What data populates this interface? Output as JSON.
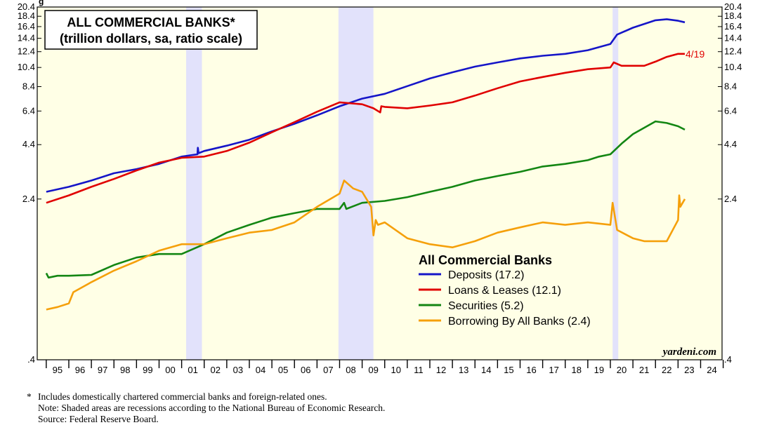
{
  "chart_data": {
    "type": "line",
    "scale": "log",
    "title": "ALL COMMERCIAL BANKS*",
    "subtitle": "(trillion dollars, sa, ratio scale)",
    "ylim": [
      0.4,
      20.4
    ],
    "y_ticks": [
      ".4",
      "2.4",
      "4.4",
      "6.4",
      "8.4",
      "10.4",
      "12.4",
      "14.4",
      "16.4",
      "18.4",
      "20.4"
    ],
    "x_ticks": [
      "95",
      "96",
      "97",
      "98",
      "99",
      "00",
      "01",
      "02",
      "03",
      "04",
      "05",
      "06",
      "07",
      "08",
      "09",
      "10",
      "11",
      "12",
      "13",
      "14",
      "15",
      "16",
      "17",
      "18",
      "19",
      "20",
      "21",
      "22",
      "23",
      "24"
    ],
    "x_range": [
      1995,
      2025
    ],
    "recessions": [
      [
        2001.2,
        2001.9
      ],
      [
        2007.95,
        2009.5
      ],
      [
        2020.1,
        2020.35
      ]
    ],
    "legend_title": "All Commercial Banks",
    "end_label": "4/19",
    "watermark": "yardeni.com",
    "series": [
      {
        "name": "Deposits (17.2)",
        "color": "#1515c8",
        "points": [
          [
            1995,
            2.6
          ],
          [
            1996,
            2.75
          ],
          [
            1997,
            2.95
          ],
          [
            1998,
            3.2
          ],
          [
            1999,
            3.35
          ],
          [
            2000,
            3.55
          ],
          [
            2001,
            3.85
          ],
          [
            2001.7,
            3.95
          ],
          [
            2001.72,
            4.25
          ],
          [
            2001.75,
            4.0
          ],
          [
            2002,
            4.1
          ],
          [
            2003,
            4.35
          ],
          [
            2004,
            4.65
          ],
          [
            2005,
            5.1
          ],
          [
            2006,
            5.55
          ],
          [
            2007,
            6.1
          ],
          [
            2008,
            6.75
          ],
          [
            2009,
            7.35
          ],
          [
            2010,
            7.75
          ],
          [
            2011,
            8.45
          ],
          [
            2012,
            9.2
          ],
          [
            2013,
            9.85
          ],
          [
            2014,
            10.5
          ],
          [
            2015,
            11.0
          ],
          [
            2016,
            11.5
          ],
          [
            2017,
            11.85
          ],
          [
            2018,
            12.1
          ],
          [
            2019,
            12.6
          ],
          [
            2020,
            13.5
          ],
          [
            2020.3,
            15.0
          ],
          [
            2021,
            16.2
          ],
          [
            2022,
            17.6
          ],
          [
            2022.5,
            17.8
          ],
          [
            2023,
            17.5
          ],
          [
            2023.3,
            17.2
          ]
        ]
      },
      {
        "name": "Loans & Leases (12.1)",
        "color": "#e00000",
        "points": [
          [
            1995,
            2.3
          ],
          [
            1996,
            2.5
          ],
          [
            1997,
            2.75
          ],
          [
            1998,
            3.0
          ],
          [
            1999,
            3.3
          ],
          [
            2000,
            3.6
          ],
          [
            2001,
            3.8
          ],
          [
            2002,
            3.85
          ],
          [
            2003,
            4.1
          ],
          [
            2004,
            4.5
          ],
          [
            2005,
            5.05
          ],
          [
            2006,
            5.65
          ],
          [
            2007,
            6.35
          ],
          [
            2008,
            7.05
          ],
          [
            2009,
            6.9
          ],
          [
            2009.5,
            6.6
          ],
          [
            2009.8,
            6.3
          ],
          [
            2009.85,
            6.75
          ],
          [
            2010,
            6.7
          ],
          [
            2011,
            6.6
          ],
          [
            2012,
            6.8
          ],
          [
            2013,
            7.05
          ],
          [
            2014,
            7.6
          ],
          [
            2015,
            8.25
          ],
          [
            2016,
            8.9
          ],
          [
            2017,
            9.35
          ],
          [
            2018,
            9.8
          ],
          [
            2019,
            10.2
          ],
          [
            2020,
            10.4
          ],
          [
            2020.15,
            11.0
          ],
          [
            2020.5,
            10.6
          ],
          [
            2021,
            10.6
          ],
          [
            2021.5,
            10.6
          ],
          [
            2022,
            11.1
          ],
          [
            2022.5,
            11.7
          ],
          [
            2023,
            12.1
          ],
          [
            2023.3,
            12.1
          ]
        ]
      },
      {
        "name": "Securities (5.2)",
        "color": "#138613",
        "points": [
          [
            1995,
            1.05
          ],
          [
            1995.1,
            1.0
          ],
          [
            1995.5,
            1.02
          ],
          [
            1996,
            1.02
          ],
          [
            1997,
            1.03
          ],
          [
            1998,
            1.15
          ],
          [
            1999,
            1.25
          ],
          [
            2000,
            1.3
          ],
          [
            2001,
            1.3
          ],
          [
            2002,
            1.45
          ],
          [
            2003,
            1.65
          ],
          [
            2004,
            1.8
          ],
          [
            2005,
            1.95
          ],
          [
            2006,
            2.05
          ],
          [
            2007,
            2.15
          ],
          [
            2008,
            2.15
          ],
          [
            2008.2,
            2.3
          ],
          [
            2008.3,
            2.15
          ],
          [
            2009,
            2.3
          ],
          [
            2010,
            2.35
          ],
          [
            2011,
            2.45
          ],
          [
            2012,
            2.6
          ],
          [
            2013,
            2.75
          ],
          [
            2014,
            2.95
          ],
          [
            2015,
            3.1
          ],
          [
            2016,
            3.25
          ],
          [
            2017,
            3.45
          ],
          [
            2018,
            3.55
          ],
          [
            2019,
            3.7
          ],
          [
            2019.5,
            3.85
          ],
          [
            2020,
            3.95
          ],
          [
            2020.5,
            4.45
          ],
          [
            2021,
            4.95
          ],
          [
            2022,
            5.7
          ],
          [
            2022.5,
            5.6
          ],
          [
            2023,
            5.4
          ],
          [
            2023.3,
            5.2
          ]
        ]
      },
      {
        "name": "Borrowing By All Banks (2.4)",
        "color": "#f5a00b",
        "points": [
          [
            1995,
            0.7
          ],
          [
            1995.5,
            0.72
          ],
          [
            1996,
            0.75
          ],
          [
            1996.2,
            0.85
          ],
          [
            1997,
            0.95
          ],
          [
            1998,
            1.08
          ],
          [
            1999,
            1.2
          ],
          [
            2000,
            1.35
          ],
          [
            2001,
            1.45
          ],
          [
            2002,
            1.45
          ],
          [
            2003,
            1.55
          ],
          [
            2004,
            1.65
          ],
          [
            2005,
            1.7
          ],
          [
            2006,
            1.85
          ],
          [
            2007,
            2.2
          ],
          [
            2008,
            2.55
          ],
          [
            2008.2,
            2.95
          ],
          [
            2008.6,
            2.7
          ],
          [
            2009,
            2.6
          ],
          [
            2009.4,
            2.2
          ],
          [
            2009.5,
            1.6
          ],
          [
            2009.6,
            1.9
          ],
          [
            2009.7,
            1.8
          ],
          [
            2010,
            1.85
          ],
          [
            2011,
            1.55
          ],
          [
            2012,
            1.45
          ],
          [
            2013,
            1.4
          ],
          [
            2014,
            1.5
          ],
          [
            2015,
            1.65
          ],
          [
            2016,
            1.75
          ],
          [
            2017,
            1.85
          ],
          [
            2018,
            1.8
          ],
          [
            2019,
            1.85
          ],
          [
            2020,
            1.8
          ],
          [
            2020.1,
            2.3
          ],
          [
            2020.3,
            1.7
          ],
          [
            2021,
            1.55
          ],
          [
            2021.5,
            1.5
          ],
          [
            2022,
            1.5
          ],
          [
            2022.5,
            1.5
          ],
          [
            2023,
            1.9
          ],
          [
            2023.05,
            2.5
          ],
          [
            2023.1,
            2.2
          ],
          [
            2023.3,
            2.4
          ]
        ]
      }
    ]
  },
  "footnotes": {
    "star": "*",
    "line1": "Includes domestically chartered commercial banks and foreign-related ones.",
    "line2": "Note: Shaded areas are recessions according to the National Bureau of Economic Research.",
    "line3": "Source: Federal Reserve Board."
  },
  "top_fragment": "g"
}
